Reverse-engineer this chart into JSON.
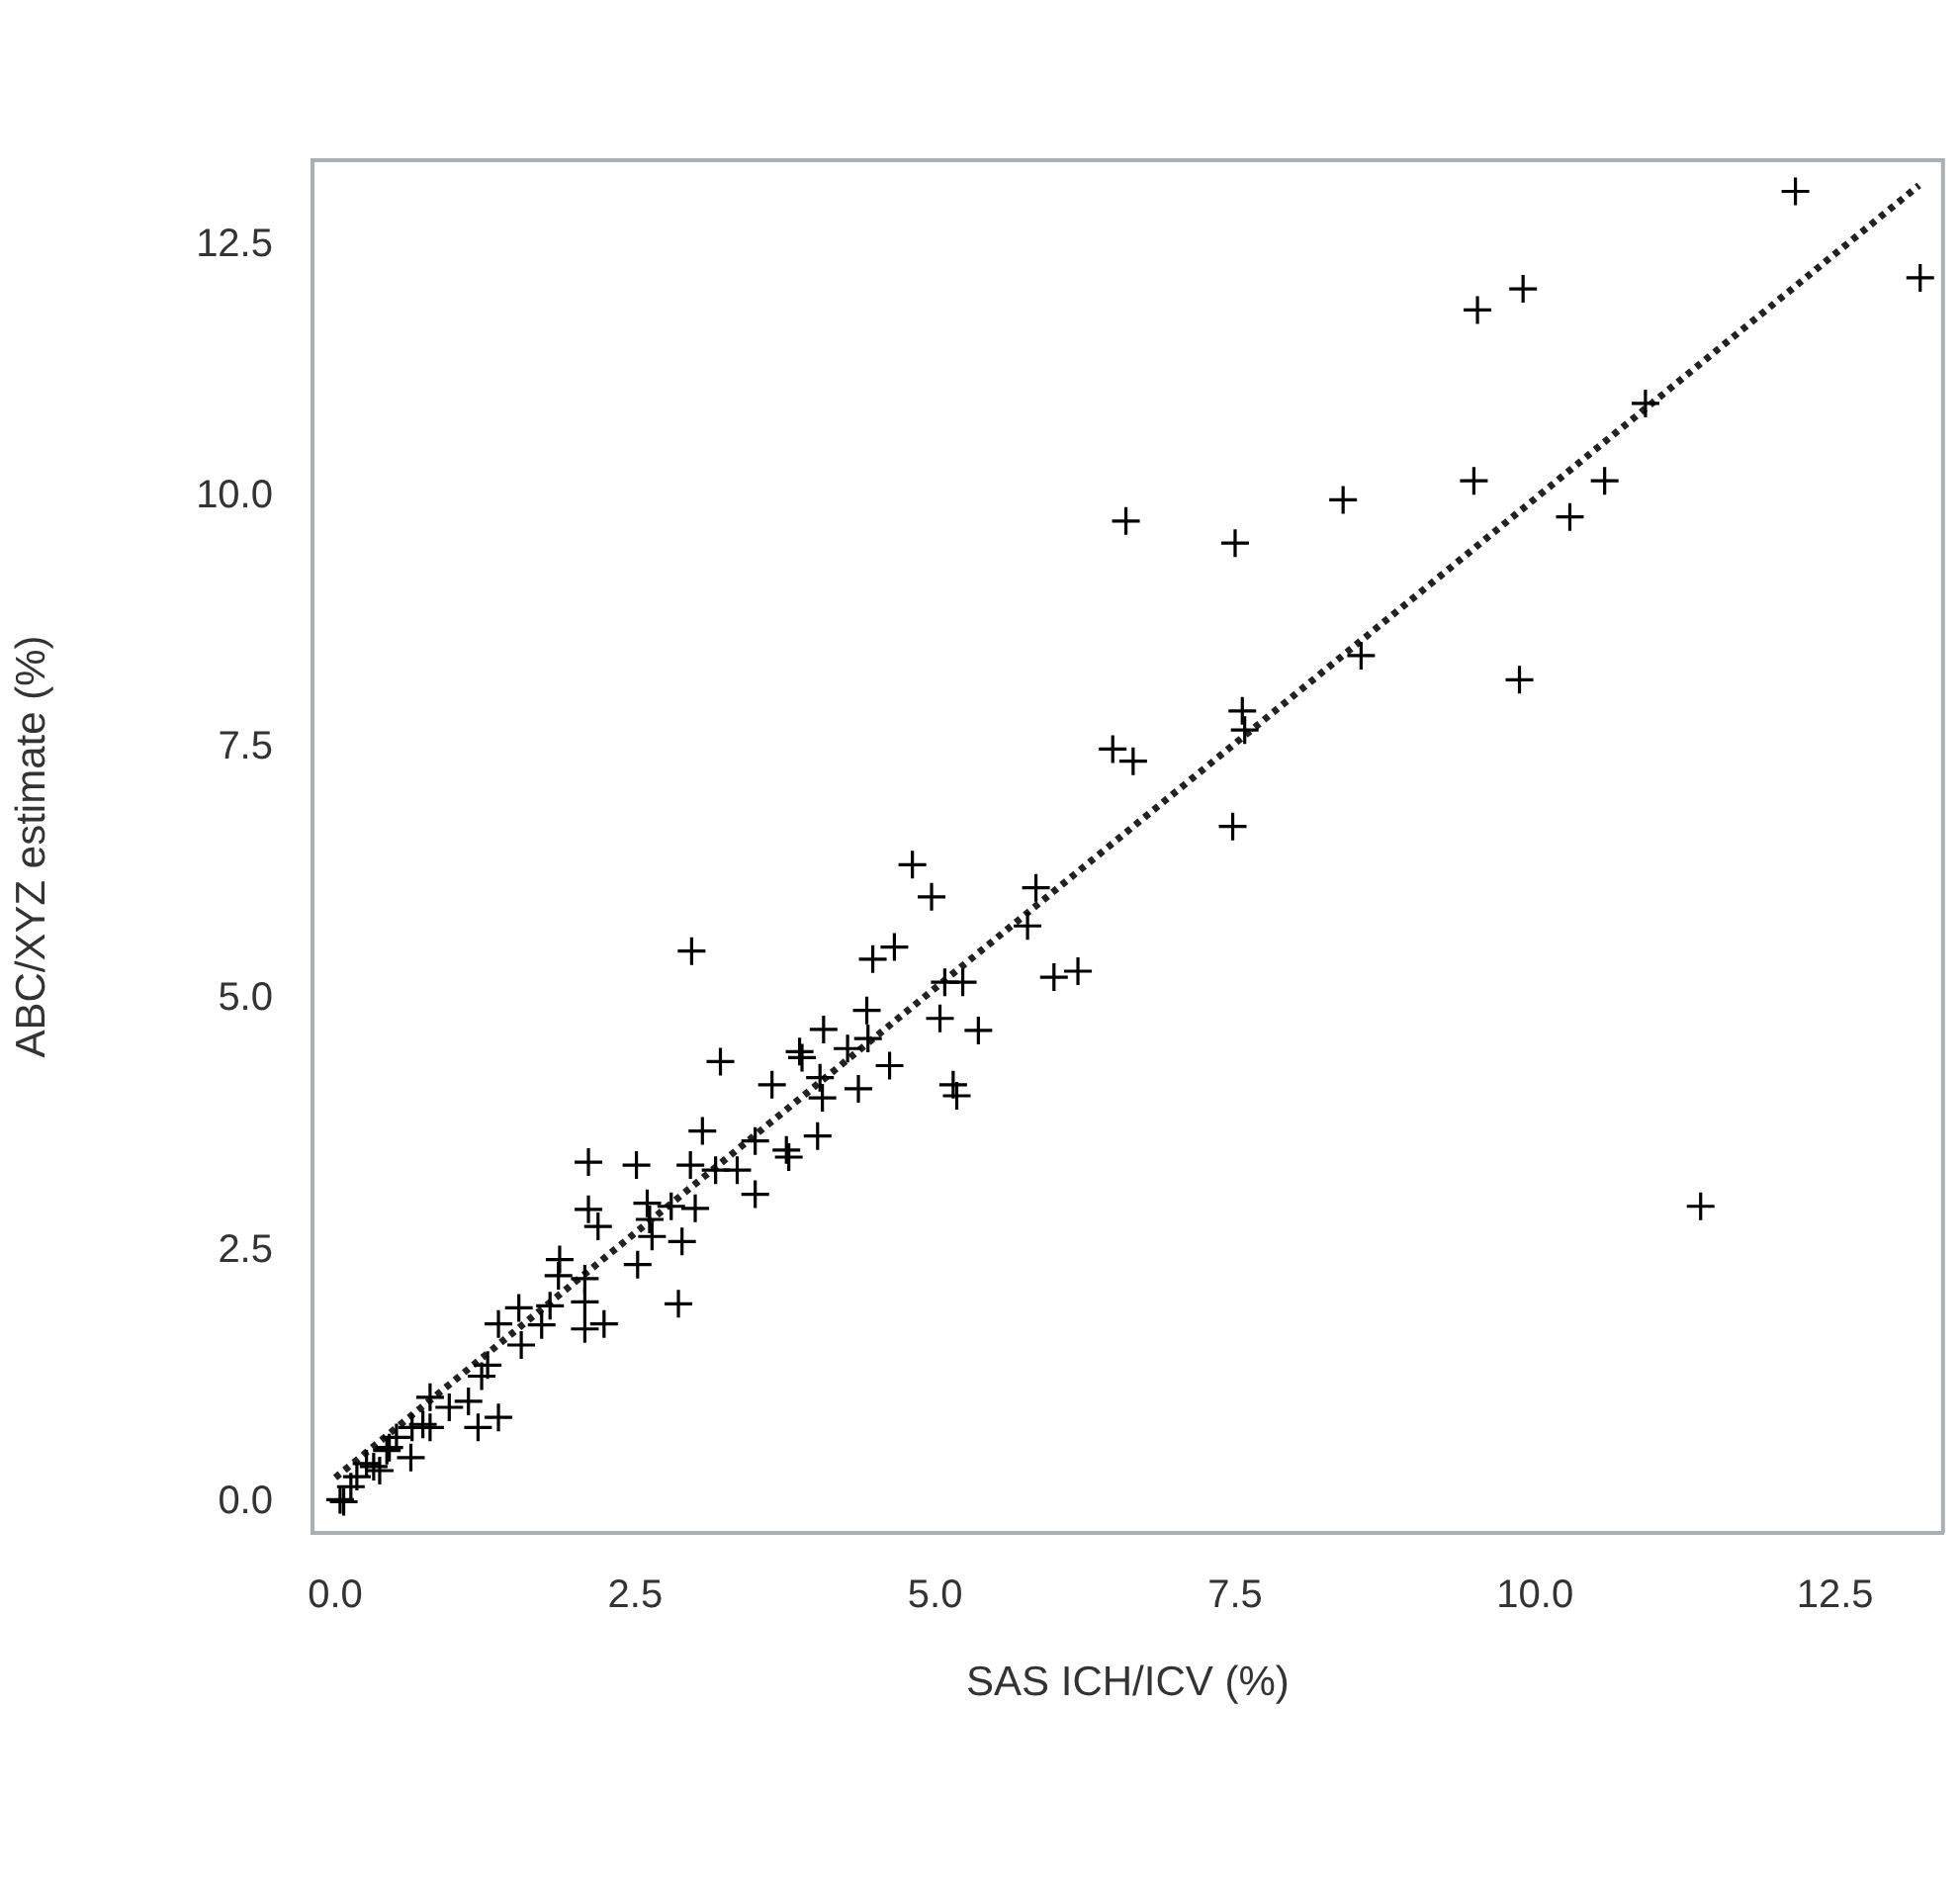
{
  "chart_data": {
    "type": "scatter",
    "xlabel": "SAS ICH/ICV (%)",
    "ylabel": "ABC/XYZ estimate (%)",
    "xlim": [
      -0.19,
      13.4
    ],
    "ylim": [
      -0.31,
      13.35
    ],
    "xticks": [
      {
        "value": 0,
        "label": "0.0"
      },
      {
        "value": 2.5,
        "label": "2.5"
      },
      {
        "value": 5,
        "label": "5.0"
      },
      {
        "value": 7.5,
        "label": "7.5"
      },
      {
        "value": 10,
        "label": "10.0"
      },
      {
        "value": 12.5,
        "label": "12.5"
      }
    ],
    "yticks": [
      {
        "value": 0,
        "label": "0.0"
      },
      {
        "value": 2.5,
        "label": "2.5"
      },
      {
        "value": 5,
        "label": "5.0"
      },
      {
        "value": 7.5,
        "label": "7.5"
      },
      {
        "value": 10,
        "label": "10.0"
      },
      {
        "value": 12.5,
        "label": "12.5"
      }
    ],
    "grid": false,
    "legend": false,
    "marker": "cross",
    "series": [
      {
        "color": "#000000",
        "x": [
          12.17,
          13.21,
          9.52,
          9.9,
          10.92,
          6.59,
          7.5,
          8.4,
          9.49,
          10.29,
          10.58,
          8.55,
          9.87,
          7.56,
          7.58,
          6.48,
          6.65,
          7.48,
          5.84,
          5.77,
          5.99,
          6.19,
          11.38,
          4.81,
          4.97,
          2.97,
          4.48,
          4.66,
          5.08,
          5.23,
          5.04,
          5.36,
          5.15,
          5.18,
          4.43,
          4.44,
          4.62,
          4.36,
          4.07,
          4.27,
          4.04,
          4.06,
          4.02,
          3.87,
          3.89,
          3.64,
          3.21,
          3.06,
          3.5,
          3.35,
          3.17,
          3.76,
          3.78,
          3.5,
          2.96,
          3.0,
          2.89,
          2.86,
          2.51,
          2.52,
          2.6,
          2.62,
          2.64,
          2.8,
          2.11,
          2.11,
          2.19,
          2.08,
          2.08,
          2.08,
          2.24,
          1.87,
          1.86,
          1.79,
          1.53,
          1.36,
          1.55,
          1.72,
          1.27,
          1.22,
          1.19,
          1.36,
          1.11,
          0.95,
          0.79,
          0.79,
          0.64,
          0.63,
          0.51,
          0.43,
          0.37,
          0.26,
          0.18,
          0.13,
          0.04,
          0.07,
          0.45,
          0.32,
          0.73
        ],
        "values": [
          13.04,
          12.18,
          11.86,
          12.07,
          10.93,
          9.76,
          9.54,
          9.97,
          10.16,
          9.8,
          10.16,
          8.42,
          8.18,
          7.87,
          7.68,
          7.49,
          7.37,
          6.72,
          6.11,
          5.73,
          5.22,
          5.28,
          2.94,
          6.34,
          6.02,
          5.48,
          5.4,
          5.52,
          5.17,
          5.17,
          4.81,
          4.69,
          4.15,
          4.04,
          4.89,
          4.61,
          4.34,
          4.11,
          4.7,
          4.51,
          4.22,
          4.02,
          3.64,
          4.48,
          4.42,
          4.15,
          4.38,
          3.69,
          3.59,
          3.3,
          3.3,
          3.5,
          3.43,
          3.06,
          3.35,
          2.92,
          2.59,
          1.97,
          3.35,
          2.36,
          2.97,
          2.81,
          2.64,
          2.94,
          3.38,
          2.91,
          2.74,
          2.22,
          1.99,
          1.72,
          1.77,
          2.41,
          2.25,
          1.95,
          1.93,
          1.77,
          1.56,
          1.76,
          1.36,
          1.25,
          0.74,
          0.84,
          1.0,
          0.94,
          1.04,
          0.74,
          0.74,
          0.44,
          0.64,
          0.51,
          0.31,
          0.38,
          0.25,
          0.15,
          0.02,
          0.0,
          0.54,
          0.35,
          0.77
        ]
      },
      {
        "type": "line",
        "color": "#222222",
        "line_style": "dotted",
        "marker": "none",
        "x": [
          0,
          13.2
        ],
        "values": [
          0.24,
          13.1
        ]
      }
    ]
  }
}
